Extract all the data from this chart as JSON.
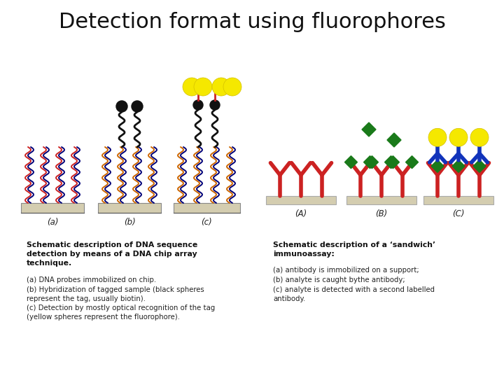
{
  "title": "Detection format using fluorophores",
  "title_fontsize": 22,
  "bg_color": "#ffffff",
  "left_caption_bold": "Schematic description of DNA sequence\ndetection by means of a DNA chip array\ntechnique.",
  "left_caption_normal_1": "(a) DNA probes immobilized on chip.",
  "left_caption_normal_2": "(b) Hybridization of tagged sample (black spheres\nrepresent the tag, usually biotin).",
  "left_caption_normal_3": "(c) Detection by mostly optical recognition of the tag\n(yellow spheres represent the fluorophore).",
  "right_caption_bold": "Schematic description of a ‘sandwich’\nimmunoassay:",
  "right_caption_normal_1": "(a) antibody is immobilized on a support;",
  "right_caption_normal_2": "(b) analyte is caught bythe antibody;",
  "right_caption_normal_3": "(c) analyte is detected with a second labelled\nantibody.",
  "label_a": "(a)",
  "label_b": "(b)",
  "label_c": "(c)",
  "label_A": "(A)",
  "label_B": "(B)",
  "label_C": "(C)"
}
